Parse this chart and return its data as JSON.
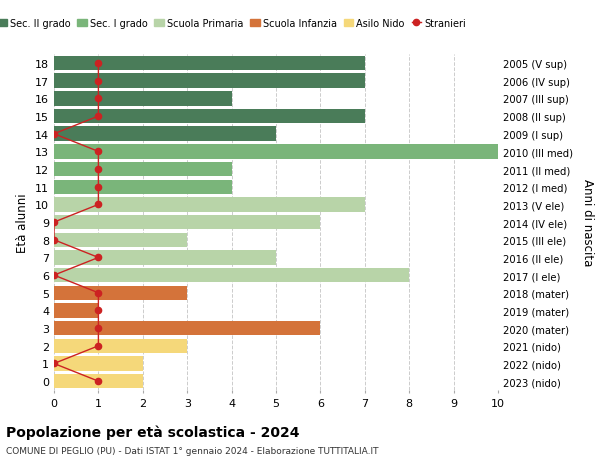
{
  "ages": [
    18,
    17,
    16,
    15,
    14,
    13,
    12,
    11,
    10,
    9,
    8,
    7,
    6,
    5,
    4,
    3,
    2,
    1,
    0
  ],
  "birth_years": [
    "2005 (V sup)",
    "2006 (IV sup)",
    "2007 (III sup)",
    "2008 (II sup)",
    "2009 (I sup)",
    "2010 (III med)",
    "2011 (II med)",
    "2012 (I med)",
    "2013 (V ele)",
    "2014 (IV ele)",
    "2015 (III ele)",
    "2016 (II ele)",
    "2017 (I ele)",
    "2018 (mater)",
    "2019 (mater)",
    "2020 (mater)",
    "2021 (nido)",
    "2022 (nido)",
    "2023 (nido)"
  ],
  "bar_values": [
    7,
    7,
    4,
    7,
    5,
    10,
    4,
    4,
    7,
    6,
    3,
    5,
    8,
    3,
    1,
    6,
    3,
    2,
    2
  ],
  "bar_colors": [
    "#4a7c59",
    "#4a7c59",
    "#4a7c59",
    "#4a7c59",
    "#4a7c59",
    "#7ab57a",
    "#7ab57a",
    "#7ab57a",
    "#b8d4a8",
    "#b8d4a8",
    "#b8d4a8",
    "#b8d4a8",
    "#b8d4a8",
    "#d4733a",
    "#d4733a",
    "#d4733a",
    "#f5d87a",
    "#f5d87a",
    "#f5d87a"
  ],
  "stranieri_values": [
    1,
    1,
    1,
    1,
    0,
    1,
    1,
    1,
    1,
    0,
    0,
    1,
    0,
    1,
    1,
    1,
    1,
    0,
    1
  ],
  "legend_labels": [
    "Sec. II grado",
    "Sec. I grado",
    "Scuola Primaria",
    "Scuola Infanzia",
    "Asilo Nido",
    "Stranieri"
  ],
  "legend_colors": [
    "#4a7c59",
    "#7ab57a",
    "#b8d4a8",
    "#d4733a",
    "#f5d87a",
    "#cc2222"
  ],
  "title": "Popolazione per età scolastica - 2024",
  "subtitle": "COMUNE DI PEGLIO (PU) - Dati ISTAT 1° gennaio 2024 - Elaborazione TUTTITALIA.IT",
  "ylabel": "Età alunni",
  "ylabel2": "Anni di nascita",
  "xlim": [
    0,
    10
  ],
  "xticks": [
    0,
    1,
    2,
    3,
    4,
    5,
    6,
    7,
    8,
    9,
    10
  ],
  "bg_color": "#ffffff",
  "grid_color": "#cccccc",
  "bar_height": 0.82
}
